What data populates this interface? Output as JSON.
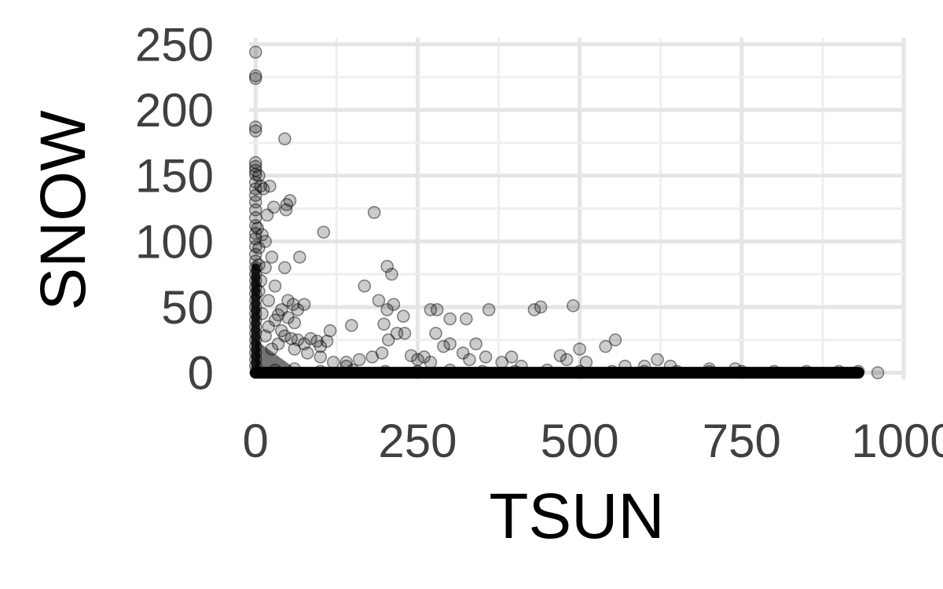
{
  "chart_data": {
    "type": "scatter",
    "title": "",
    "xlabel": "TSUN",
    "ylabel": "SNOW",
    "xlim": [
      -10,
      1000
    ],
    "ylim": [
      -5,
      255
    ],
    "x_ticks": [
      0,
      250,
      500,
      750,
      1000
    ],
    "x_tick_labels": [
      "0",
      "250",
      "500",
      "750",
      "1000"
    ],
    "y_ticks": [
      0,
      50,
      100,
      150,
      200,
      250
    ],
    "y_tick_labels": [
      "0",
      "50",
      "100",
      "150",
      "200",
      "250"
    ],
    "grid": true,
    "series": [
      {
        "point_color": "#000000",
        "point_alpha": 0.2,
        "points": [
          [
            0,
            244
          ],
          [
            0,
            226
          ],
          [
            0,
            224
          ],
          [
            0,
            187
          ],
          [
            0,
            184
          ],
          [
            0,
            160
          ],
          [
            0,
            157
          ],
          [
            0,
            154
          ],
          [
            0,
            151
          ],
          [
            0,
            145
          ],
          [
            0,
            140
          ],
          [
            0,
            135
          ],
          [
            0,
            130
          ],
          [
            0,
            124
          ],
          [
            0,
            118
          ],
          [
            0,
            112
          ],
          [
            0,
            106
          ],
          [
            0,
            102
          ],
          [
            0,
            96
          ],
          [
            0,
            90
          ],
          [
            0,
            85
          ],
          [
            0,
            80
          ],
          [
            0,
            75
          ],
          [
            0,
            70
          ],
          [
            0,
            65
          ],
          [
            0,
            60
          ],
          [
            0,
            55
          ],
          [
            0,
            50
          ],
          [
            0,
            45
          ],
          [
            0,
            40
          ],
          [
            0,
            35
          ],
          [
            0,
            30
          ],
          [
            0,
            25
          ],
          [
            0,
            20
          ],
          [
            0,
            15
          ],
          [
            0,
            10
          ],
          [
            0,
            5
          ],
          [
            5,
            150
          ],
          [
            8,
            142
          ],
          [
            12,
            140
          ],
          [
            22,
            142
          ],
          [
            18,
            120
          ],
          [
            28,
            126
          ],
          [
            47,
            124
          ],
          [
            48,
            128
          ],
          [
            53,
            131
          ],
          [
            45,
            178
          ],
          [
            3,
            110
          ],
          [
            10,
            105
          ],
          [
            15,
            100
          ],
          [
            5,
            95
          ],
          [
            25,
            88
          ],
          [
            5,
            82
          ],
          [
            15,
            80
          ],
          [
            45,
            80
          ],
          [
            68,
            88
          ],
          [
            8,
            70
          ],
          [
            30,
            66
          ],
          [
            5,
            62
          ],
          [
            20,
            55
          ],
          [
            50,
            55
          ],
          [
            58,
            52
          ],
          [
            40,
            48
          ],
          [
            65,
            48
          ],
          [
            75,
            52
          ],
          [
            10,
            45
          ],
          [
            35,
            44
          ],
          [
            30,
            40
          ],
          [
            50,
            42
          ],
          [
            60,
            38
          ],
          [
            20,
            35
          ],
          [
            40,
            32
          ],
          [
            15,
            28
          ],
          [
            45,
            28
          ],
          [
            55,
            26
          ],
          [
            65,
            25
          ],
          [
            75,
            22
          ],
          [
            85,
            26
          ],
          [
            95,
            24
          ],
          [
            100,
            20
          ],
          [
            110,
            24
          ],
          [
            115,
            32
          ],
          [
            35,
            22
          ],
          [
            25,
            18
          ],
          [
            60,
            18
          ],
          [
            80,
            15
          ],
          [
            100,
            12
          ],
          [
            120,
            8
          ],
          [
            140,
            5
          ],
          [
            105,
            107
          ],
          [
            183,
            122
          ],
          [
            168,
            66
          ],
          [
            203,
            81
          ],
          [
            210,
            75
          ],
          [
            190,
            55
          ],
          [
            213,
            52
          ],
          [
            203,
            48
          ],
          [
            228,
            43
          ],
          [
            198,
            37
          ],
          [
            218,
            30
          ],
          [
            205,
            25
          ],
          [
            230,
            30
          ],
          [
            148,
            36
          ],
          [
            140,
            8
          ],
          [
            160,
            10
          ],
          [
            180,
            12
          ],
          [
            195,
            15
          ],
          [
            270,
            48
          ],
          [
            280,
            48
          ],
          [
            300,
            41
          ],
          [
            325,
            41
          ],
          [
            360,
            48
          ],
          [
            278,
            30
          ],
          [
            290,
            20
          ],
          [
            300,
            22
          ],
          [
            320,
            15
          ],
          [
            330,
            10
          ],
          [
            340,
            22
          ],
          [
            355,
            12
          ],
          [
            380,
            8
          ],
          [
            395,
            12
          ],
          [
            410,
            5
          ],
          [
            430,
            48
          ],
          [
            440,
            50
          ],
          [
            490,
            51
          ],
          [
            250,
            10
          ],
          [
            260,
            12
          ],
          [
            270,
            8
          ],
          [
            240,
            13
          ],
          [
            470,
            13
          ],
          [
            480,
            10
          ],
          [
            500,
            18
          ],
          [
            510,
            8
          ],
          [
            540,
            20
          ],
          [
            555,
            25
          ],
          [
            570,
            5
          ],
          [
            600,
            5
          ],
          [
            620,
            10
          ],
          [
            640,
            5
          ],
          [
            700,
            3
          ],
          [
            740,
            3
          ],
          [
            960,
            0
          ],
          [
            30,
            2
          ],
          [
            60,
            3
          ],
          [
            100,
            1
          ],
          [
            150,
            2
          ],
          [
            200,
            1
          ],
          [
            250,
            1
          ],
          [
            300,
            2
          ],
          [
            350,
            1
          ],
          [
            400,
            1
          ],
          [
            450,
            2
          ],
          [
            500,
            1
          ],
          [
            550,
            1
          ],
          [
            600,
            1
          ],
          [
            650,
            1
          ],
          [
            700,
            1
          ],
          [
            750,
            1
          ],
          [
            800,
            1
          ],
          [
            850,
            1
          ],
          [
            900,
            1
          ],
          [
            930,
            1
          ]
        ],
        "dense_band": {
          "x_from": 0,
          "x_to": 930,
          "y": 0
        },
        "dense_column": {
          "x": 0,
          "y_from": 0,
          "y_to": 80
        }
      }
    ]
  }
}
